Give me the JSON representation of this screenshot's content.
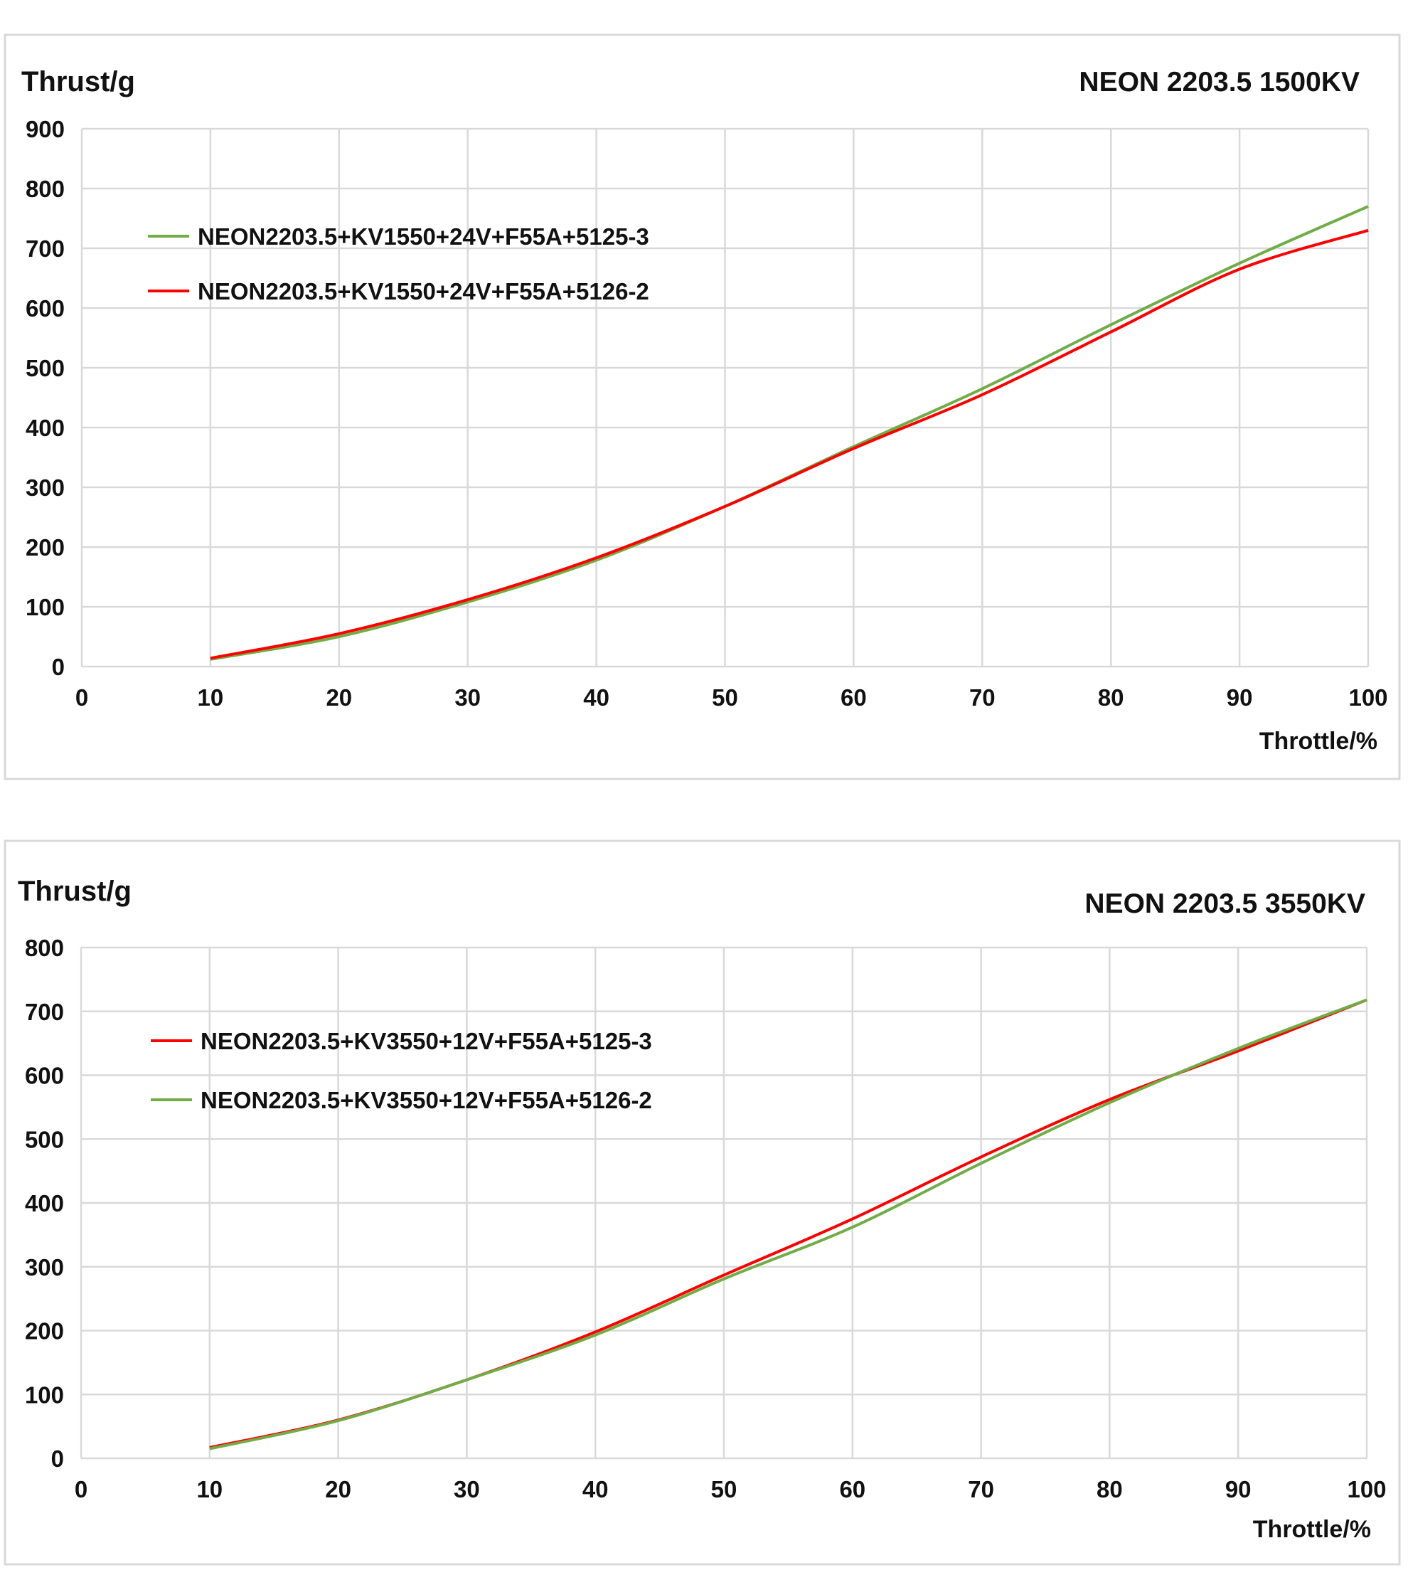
{
  "chart_data": [
    {
      "type": "line",
      "title": "NEON 2203.5 1500KV",
      "ylabel": "Thrust/g",
      "xlabel": "Throttle/%",
      "xlim": [
        0,
        100
      ],
      "ylim": [
        0,
        900
      ],
      "xticks": [
        0,
        10,
        20,
        30,
        40,
        50,
        60,
        70,
        80,
        90,
        100
      ],
      "yticks": [
        0,
        100,
        200,
        300,
        400,
        500,
        600,
        700,
        800,
        900
      ],
      "grid": true,
      "legend": "top-left",
      "x": [
        10,
        20,
        30,
        40,
        50,
        60,
        70,
        80,
        90,
        100
      ],
      "series": [
        {
          "name": "NEON2203.5+KV1550+24V+F55A+5125-3",
          "color": "#70AD47",
          "values": [
            12,
            50,
            108,
            178,
            268,
            368,
            465,
            572,
            675,
            770
          ]
        },
        {
          "name": "NEON2203.5+KV1550+24V+F55A+5126-2",
          "color": "#FF0000",
          "values": [
            14,
            55,
            112,
            182,
            268,
            365,
            455,
            560,
            665,
            730
          ]
        }
      ]
    },
    {
      "type": "line",
      "title": "NEON 2203.5 3550KV",
      "ylabel": "Thrust/g",
      "xlabel": "Throttle/%",
      "xlim": [
        0,
        100
      ],
      "ylim": [
        0,
        800
      ],
      "xticks": [
        0,
        10,
        20,
        30,
        40,
        50,
        60,
        70,
        80,
        90,
        100
      ],
      "yticks": [
        0,
        100,
        200,
        300,
        400,
        500,
        600,
        700,
        800
      ],
      "grid": true,
      "legend": "top-left",
      "x": [
        10,
        20,
        30,
        40,
        50,
        60,
        70,
        80,
        90,
        100
      ],
      "series": [
        {
          "name": "NEON2203.5+KV3550+12V+F55A+5125-3",
          "color": "#FF0000",
          "values": [
            17,
            60,
            123,
            198,
            287,
            375,
            472,
            562,
            638,
            718
          ]
        },
        {
          "name": "NEON2203.5+KV3550+12V+F55A+5126-2",
          "color": "#70AD47",
          "values": [
            15,
            59,
            123,
            193,
            281,
            362,
            462,
            557,
            642,
            718
          ]
        }
      ]
    }
  ]
}
